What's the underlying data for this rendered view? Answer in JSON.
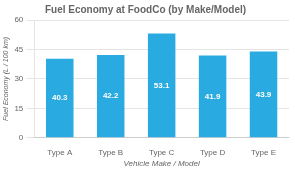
{
  "chart_data": {
    "type": "bar",
    "title": "Fuel Economy at FoodCo (by Make/Model)",
    "xlabel": "Vehicle Make / Model",
    "ylabel": "Fuel Economy (L / 100 km)",
    "categories": [
      "Type A",
      "Type B",
      "Type C",
      "Type D",
      "Type E"
    ],
    "values": [
      40.3,
      42.2,
      53.1,
      41.9,
      43.9
    ],
    "color": "#29ABE2",
    "ylim": [
      0,
      60
    ],
    "yticks": [
      0,
      15,
      30,
      45,
      60
    ],
    "grid": true,
    "data_labels": true
  }
}
